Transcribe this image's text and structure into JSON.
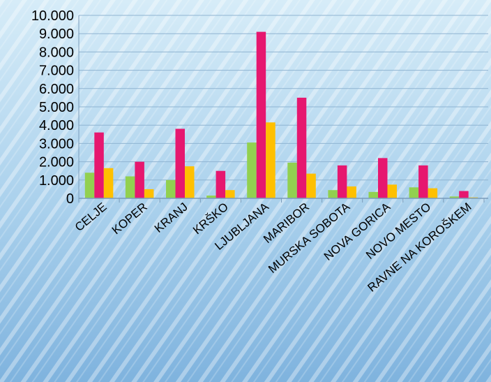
{
  "chart_data": {
    "type": "bar",
    "categories": [
      "CELJE",
      "KOPER",
      "KRANJ",
      "KRŠKO",
      "LJUBLJANA",
      "MARIBOR",
      "MURSKA SOBOTA",
      "NOVA GORICA",
      "NOVO MESTO",
      "RAVNE NA KOROŠKEM"
    ],
    "series": [
      {
        "color": "#92d050",
        "values": [
          1400,
          1200,
          1000,
          150,
          3050,
          1950,
          450,
          350,
          600,
          100
        ]
      },
      {
        "color": "#e6176f",
        "values": [
          3600,
          2000,
          3800,
          1500,
          9100,
          5500,
          1800,
          2200,
          1800,
          400
        ]
      },
      {
        "color": "#ffc000",
        "values": [
          1650,
          500,
          1750,
          450,
          4150,
          1350,
          650,
          750,
          550,
          50
        ]
      }
    ],
    "yticks": [
      "0",
      "1.000",
      "2.000",
      "3.000",
      "4.000",
      "5.000",
      "6.000",
      "7.000",
      "8.000",
      "9.000",
      "10.000"
    ],
    "ylim": [
      0,
      10000
    ],
    "title": "",
    "xlabel": "",
    "ylabel": "",
    "grid": true,
    "legend": "none"
  }
}
